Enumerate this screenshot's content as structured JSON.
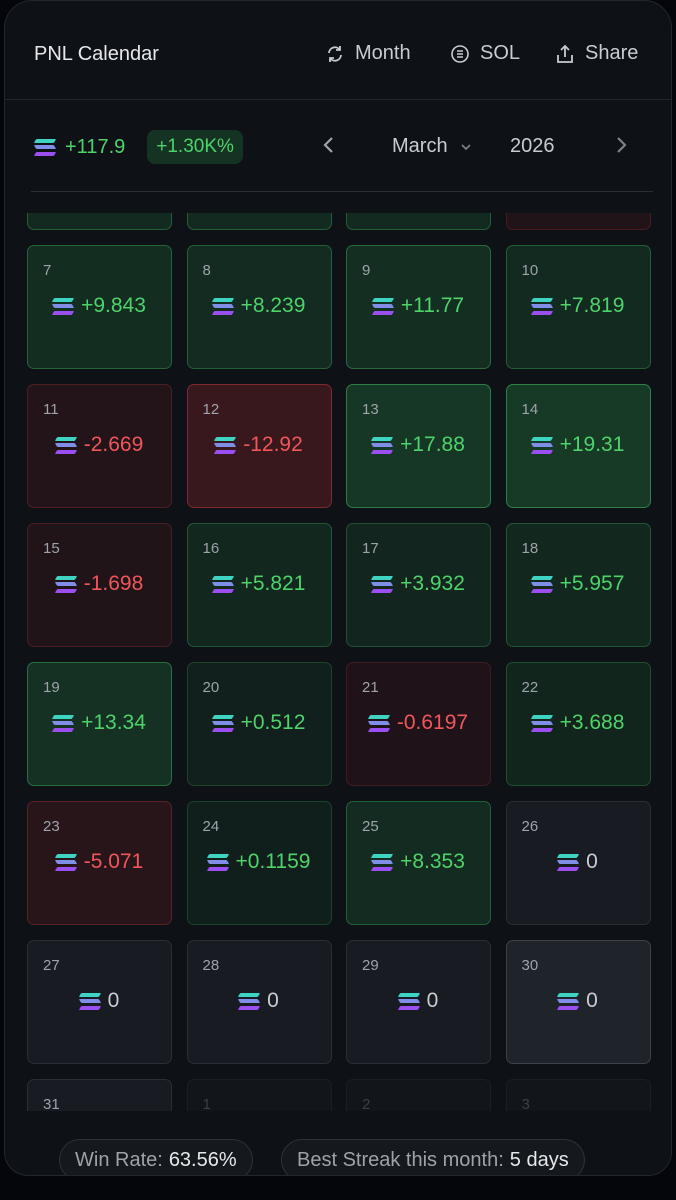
{
  "header": {
    "title": "PNL Calendar",
    "period_label": "Month",
    "currency_label": "SOL",
    "share_label": "Share"
  },
  "summary": {
    "total_pnl": "+117.9",
    "total_pct": "+1.30K%",
    "month": "March",
    "year": "2026"
  },
  "colors": {
    "profit": "#4ed36b",
    "loss": "#f0565a",
    "neutral": "#c9ccd2"
  },
  "partial_row": [
    "profit",
    "profit",
    "profit",
    "loss"
  ],
  "days": [
    {
      "day": "7",
      "pnl": "+9.843",
      "v": 9.843
    },
    {
      "day": "8",
      "pnl": "+8.239",
      "v": 8.239
    },
    {
      "day": "9",
      "pnl": "+11.77",
      "v": 11.77
    },
    {
      "day": "10",
      "pnl": "+7.819",
      "v": 7.819
    },
    {
      "day": "11",
      "pnl": "-2.669",
      "v": -2.669
    },
    {
      "day": "12",
      "pnl": "-12.92",
      "v": -12.92
    },
    {
      "day": "13",
      "pnl": "+17.88",
      "v": 17.88
    },
    {
      "day": "14",
      "pnl": "+19.31",
      "v": 19.31
    },
    {
      "day": "15",
      "pnl": "-1.698",
      "v": -1.698
    },
    {
      "day": "16",
      "pnl": "+5.821",
      "v": 5.821
    },
    {
      "day": "17",
      "pnl": "+3.932",
      "v": 3.932
    },
    {
      "day": "18",
      "pnl": "+5.957",
      "v": 5.957
    },
    {
      "day": "19",
      "pnl": "+13.34",
      "v": 13.34
    },
    {
      "day": "20",
      "pnl": "+0.512",
      "v": 0.512
    },
    {
      "day": "21",
      "pnl": "-0.6197",
      "v": -0.6197
    },
    {
      "day": "22",
      "pnl": "+3.688",
      "v": 3.688
    },
    {
      "day": "23",
      "pnl": "-5.071",
      "v": -5.071
    },
    {
      "day": "24",
      "pnl": "+0.1159",
      "v": 0.1159
    },
    {
      "day": "25",
      "pnl": "+8.353",
      "v": 8.353
    },
    {
      "day": "26",
      "pnl": "0",
      "v": 0
    },
    {
      "day": "27",
      "pnl": "0",
      "v": 0
    },
    {
      "day": "28",
      "pnl": "0",
      "v": 0
    },
    {
      "day": "29",
      "pnl": "0",
      "v": 0
    },
    {
      "day": "30",
      "pnl": "0",
      "v": 0,
      "today": true
    },
    {
      "day": "31",
      "pnl": "",
      "v": 0
    },
    {
      "day": "1",
      "pnl": "",
      "v": 0,
      "other_month": true
    },
    {
      "day": "2",
      "pnl": "",
      "v": 0,
      "other_month": true
    },
    {
      "day": "3",
      "pnl": "",
      "v": 0,
      "other_month": true
    }
  ],
  "footer": {
    "win_rate_label": "Win Rate:",
    "win_rate": "63.56%",
    "streak_label": "Best Streak this month:",
    "streak": "5 days"
  }
}
